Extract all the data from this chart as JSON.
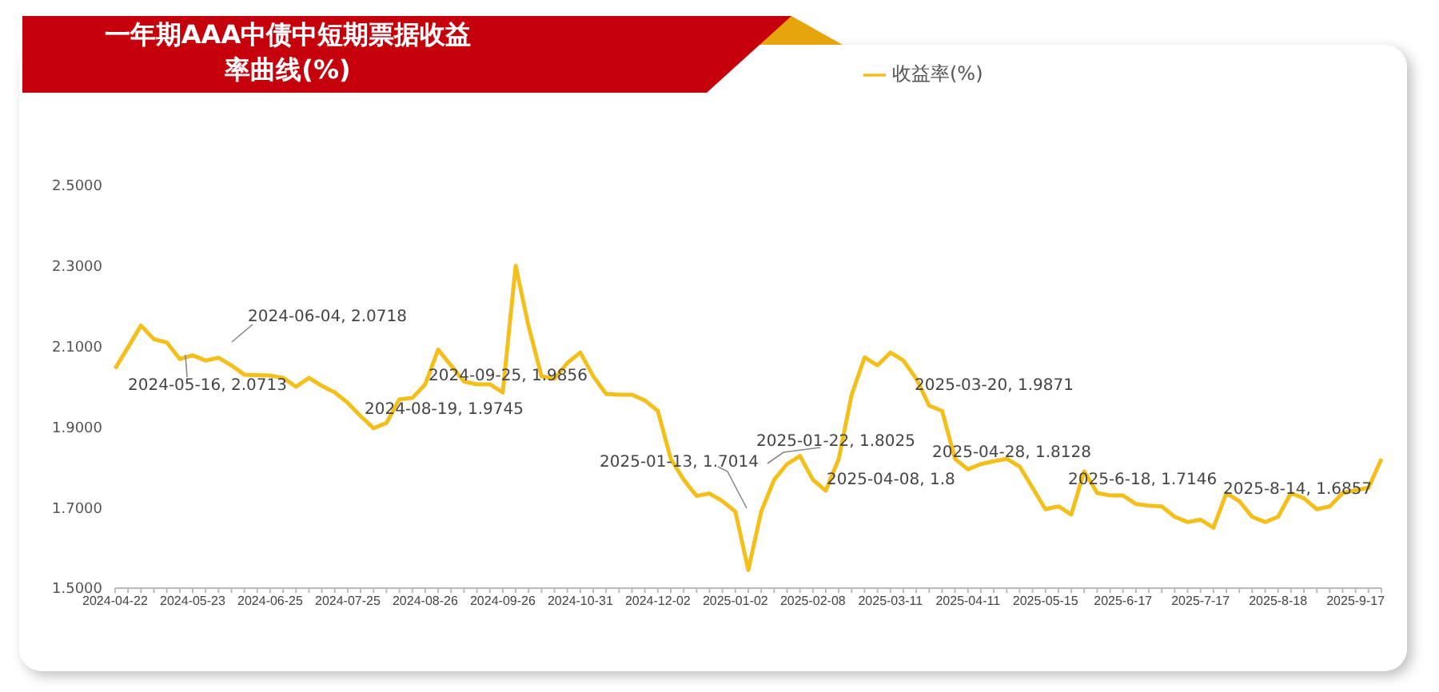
{
  "chart_data": {
    "type": "line",
    "title": "一年期AAA中债中短期票据收益率曲线(%)",
    "categories": [
      "2024-04-22",
      null,
      null,
      null,
      null,
      null,
      "2024-05-23",
      null,
      null,
      null,
      null,
      null,
      "2024-06-25",
      null,
      null,
      null,
      null,
      null,
      "2024-07-25",
      null,
      null,
      null,
      null,
      null,
      "2024-08-26",
      null,
      null,
      null,
      null,
      null,
      "2024-09-26",
      null,
      null,
      null,
      null,
      null,
      "2024-10-31",
      null,
      null,
      null,
      null,
      null,
      "2024-12-02",
      null,
      null,
      null,
      null,
      null,
      "2025-01-02",
      null,
      null,
      null,
      null,
      null,
      "2025-02-08",
      null,
      null,
      null,
      null,
      null,
      "2025-03-11",
      null,
      null,
      null,
      null,
      null,
      "2025-04-11",
      null,
      null,
      null,
      null,
      null,
      "2025-05-15",
      null,
      null,
      null,
      null,
      null,
      "2025-6-17",
      null,
      null,
      null,
      null,
      null,
      "2025-7-17",
      null,
      null,
      null,
      null,
      null,
      "2025-8-18",
      null,
      null,
      null,
      null,
      null,
      "2025-9-17",
      null,
      null
    ],
    "series": [
      {
        "name": "收益率(%)",
        "color": "#f5bf1b",
        "values": [
          2.045,
          2.098,
          2.152,
          2.118,
          2.11,
          2.069,
          2.078,
          2.065,
          2.072,
          2.053,
          2.03,
          2.029,
          2.028,
          2.022,
          2.0,
          2.022,
          2.002,
          1.986,
          1.96,
          1.927,
          1.897,
          1.91,
          1.969,
          1.972,
          2.006,
          2.092,
          2.053,
          2.013,
          2.006,
          2.006,
          1.986,
          2.3,
          2.15,
          2.026,
          2.02,
          2.059,
          2.085,
          2.026,
          1.982,
          1.98,
          1.98,
          1.966,
          1.94,
          1.821,
          1.769,
          1.729,
          1.735,
          1.716,
          1.69,
          1.545,
          1.69,
          1.769,
          1.808,
          1.828,
          1.769,
          1.742,
          1.821,
          1.98,
          2.073,
          2.053,
          2.085,
          2.065,
          2.02,
          1.953,
          1.94,
          1.821,
          1.795,
          1.808,
          1.815,
          1.821,
          1.802,
          1.749,
          1.696,
          1.703,
          1.683,
          1.79,
          1.736,
          1.73,
          1.73,
          1.709,
          1.705,
          1.703,
          1.677,
          1.664,
          1.67,
          1.65,
          1.736,
          1.716,
          1.677,
          1.664,
          1.677,
          1.736,
          1.723,
          1.696,
          1.703,
          1.736,
          1.743,
          1.749,
          1.821
        ]
      }
    ],
    "ylim": [
      1.5,
      2.5
    ],
    "yticks": [
      {
        "value": 1.5,
        "label": "1.5000"
      },
      {
        "value": 1.7,
        "label": "1.7000"
      },
      {
        "value": 1.9,
        "label": "1.9000"
      },
      {
        "value": 2.1,
        "label": "2.1000"
      },
      {
        "value": 2.3,
        "label": "2.3000"
      },
      {
        "value": 2.5,
        "label": "2.5000"
      }
    ],
    "grid": false,
    "legend": "top",
    "marker": "none",
    "line_style": "solid",
    "annotations": [
      "2024-06-04, 2.0718",
      "2024-05-16, 2.0713",
      "2024-08-19, 1.9745",
      "2024-09-25, 1.9856",
      "2025-01-13, 1.7014",
      "2025-01-22, 1.8025",
      "2025-04-08, 1.8",
      "2025-03-20, 1.9871",
      "2025-04-28, 1.8128",
      "2025-6-18, 1.7146",
      "2025-8-14, 1.6857"
    ]
  }
}
